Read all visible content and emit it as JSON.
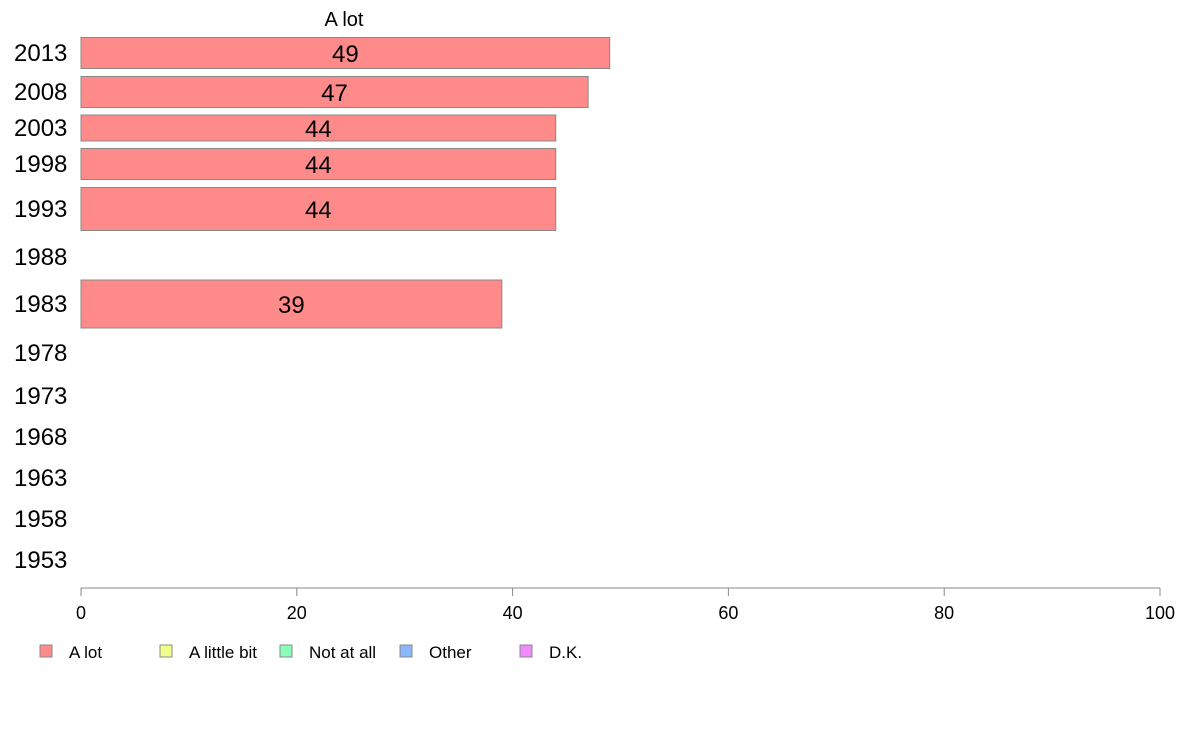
{
  "chart_data": {
    "type": "bar",
    "orientation": "horizontal",
    "title": "A lot",
    "categories": [
      "2013",
      "2008",
      "2003",
      "1998",
      "1993",
      "1988",
      "1983",
      "1978",
      "1973",
      "1968",
      "1963",
      "1958",
      "1953"
    ],
    "series": [
      {
        "name": "A lot",
        "color": "#ff8a8a",
        "values": [
          49,
          47,
          44,
          44,
          44,
          null,
          39,
          null,
          null,
          null,
          null,
          null,
          null
        ],
        "labels": [
          "49",
          "47",
          "44",
          "44",
          "44",
          "",
          "39",
          "",
          "",
          "",
          "",
          "",
          ""
        ]
      }
    ],
    "xlim": [
      0,
      100
    ],
    "xticks": [
      "0",
      "20",
      "40",
      "60",
      "80",
      "100"
    ],
    "grid": false,
    "legend_position": "bottom",
    "legend": [
      {
        "label": "A lot",
        "color": "#ff8a8a"
      },
      {
        "label": "A little bit",
        "color": "#f2ff8a"
      },
      {
        "label": "Not at all",
        "color": "#8affb8"
      },
      {
        "label": "Other",
        "color": "#8ab8ff"
      },
      {
        "label": "D.K.",
        "color": "#f28aff"
      }
    ]
  }
}
